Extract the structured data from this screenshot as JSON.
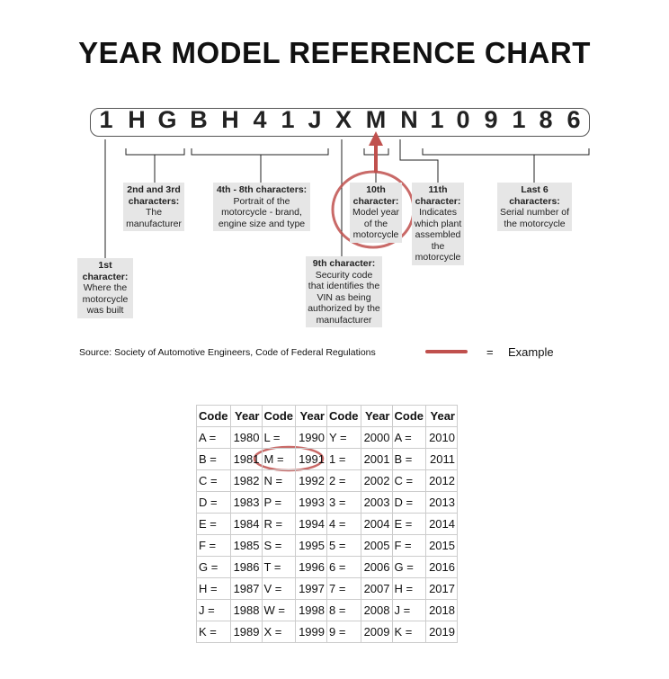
{
  "title": "YEAR MODEL REFERENCE CHART",
  "vin": [
    "1",
    "H",
    "G",
    "B",
    "H",
    "4",
    "1",
    "J",
    "X",
    "M",
    "N",
    "1",
    "0",
    "9",
    "1",
    "8",
    "6"
  ],
  "labels": {
    "c1": {
      "head": "1st character:",
      "body": "Where the motorcycle was built"
    },
    "c23": {
      "head": "2nd and 3rd characters:",
      "body": "The manufacturer"
    },
    "c48": {
      "head": "4th - 8th characters:",
      "body": "Portrait of the motorcycle - brand, engine size and type"
    },
    "c9": {
      "head": "9th character:",
      "body": "Security code that identifies the VIN as being authorized by the manufacturer"
    },
    "c10": {
      "head": "10th character:",
      "body": "Model year of the motorcycle"
    },
    "c11": {
      "head": "11th character:",
      "body": "Indicates which plant assembled the motorcycle"
    },
    "last6": {
      "head": "Last 6 characters:",
      "body": "Serial number of the motorcycle"
    }
  },
  "source": "Source:  Society of Automotive Engineers, Code of Federal Regulations",
  "legend": {
    "equals": "=",
    "label": "Example",
    "color": "#c0504d"
  },
  "table": {
    "headers": [
      "Code",
      "Year",
      "Code",
      "Year",
      "Code",
      "Year",
      "Code",
      "Year"
    ],
    "rows": [
      [
        "A =",
        "1980",
        "L =",
        "1990",
        "Y =",
        "2000",
        "A =",
        "2010"
      ],
      [
        "B =",
        "1981",
        "M =",
        "1991",
        "1 =",
        "2001",
        "B =",
        "2011"
      ],
      [
        "C =",
        "1982",
        "N =",
        "1992",
        "2 =",
        "2002",
        "C =",
        "2012"
      ],
      [
        "D =",
        "1983",
        "P =",
        "1993",
        "3 =",
        "2003",
        "D =",
        "2013"
      ],
      [
        "E =",
        "1984",
        "R =",
        "1994",
        "4 =",
        "2004",
        "E =",
        "2014"
      ],
      [
        "F =",
        "1985",
        "S =",
        "1995",
        "5 =",
        "2005",
        "F =",
        "2015"
      ],
      [
        "G =",
        "1986",
        "T =",
        "1996",
        "6 =",
        "2006",
        "G =",
        "2016"
      ],
      [
        "H =",
        "1987",
        "V =",
        "1997",
        "7 =",
        "2007",
        "H =",
        "2017"
      ],
      [
        "J =",
        "1988",
        "W =",
        "1998",
        "8 =",
        "2008",
        "J =",
        "2018"
      ],
      [
        "K =",
        "1989",
        "X =",
        "1999",
        "9 =",
        "2009",
        "K =",
        "2019"
      ]
    ]
  }
}
